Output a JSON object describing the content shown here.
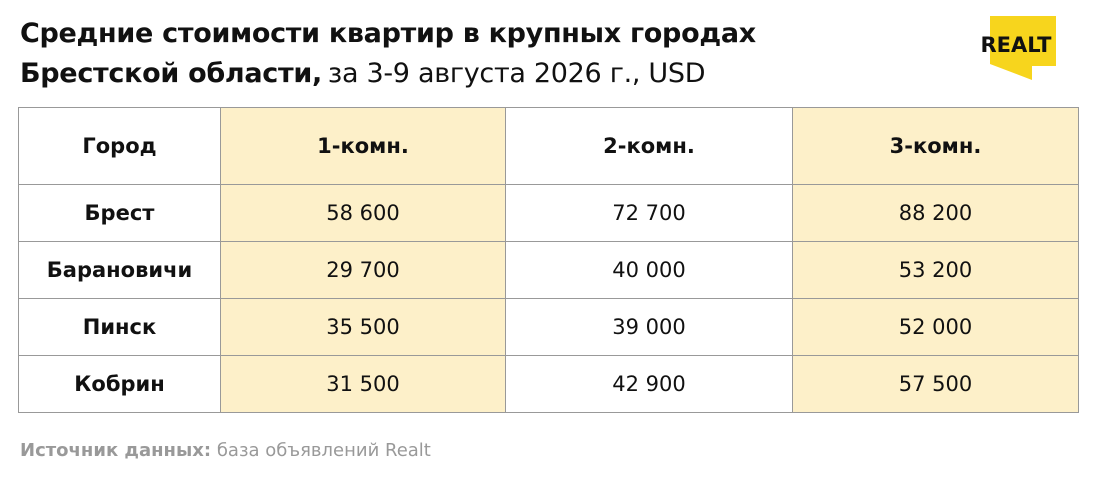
{
  "header": {
    "title": {
      "line_1": "Средние стоимости квартир в крупных городах",
      "line_2_bold": "Брестской области,",
      "line_2": "за 3-9 августа 2026 г., USD"
    },
    "logo": "REALT"
  },
  "table": {
    "columns": [
      "Город",
      "1-комн.",
      "2-комн.",
      "3-комн."
    ],
    "rows": [
      [
        "Брест",
        "58 600",
        "72 700",
        "88 200"
      ],
      [
        "Барановичи",
        "29 700",
        "40 000",
        "53 200"
      ],
      [
        "Пинск",
        "35 500",
        "39 000",
        "52 000"
      ],
      [
        "Кобрин",
        "31 500",
        "42 900",
        "57 500"
      ]
    ]
  },
  "footer": {
    "source_label": "Источник данных:",
    "source_text": "база объявлений Realt"
  }
}
